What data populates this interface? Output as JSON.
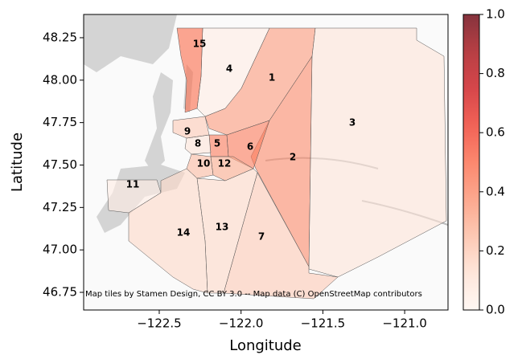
{
  "chart_data": {
    "type": "choropleth",
    "xlabel": "Longitude",
    "ylabel": "Latitude",
    "xlim": [
      -122.962,
      -120.735
    ],
    "ylim": [
      46.646,
      48.387
    ],
    "xticks": [
      {
        "value": -122.5,
        "label": "−122.5"
      },
      {
        "value": -122.0,
        "label": "−122.0"
      },
      {
        "value": -121.5,
        "label": "−121.5"
      },
      {
        "value": -121.0,
        "label": "−121.0"
      }
    ],
    "yticks": [
      46.75,
      {
        "value": 47.0,
        "label": "47.00"
      },
      47.25,
      {
        "value": 47.5,
        "label": "47.50"
      },
      47.75,
      {
        "value": 48.0,
        "label": "48.00"
      },
      48.25
    ],
    "colormap": "Reds",
    "clim": [
      0,
      1
    ],
    "cticks": [
      {
        "value": 0,
        "label": "0.0"
      },
      {
        "value": 0.2,
        "label": "0.2"
      },
      {
        "value": 0.4,
        "label": "0.4"
      },
      {
        "value": 0.6,
        "label": "0.6"
      },
      {
        "value": 0.8,
        "label": "0.8"
      },
      {
        "value": 1,
        "label": "1.0"
      }
    ],
    "regions": [
      {
        "label": "1",
        "value": 0.35
      },
      {
        "label": "2",
        "value": 0.4
      },
      {
        "label": "3",
        "value": 0.1
      },
      {
        "label": "4",
        "value": 0.05
      },
      {
        "label": "5",
        "value": 0.45
      },
      {
        "label": "6",
        "value": 0.45
      },
      {
        "label": "7",
        "value": 0.2
      },
      {
        "label": "8",
        "value": 0.1
      },
      {
        "label": "9",
        "value": 0.2
      },
      {
        "label": "10",
        "value": 0.25
      },
      {
        "label": "11",
        "value": 0.3
      },
      {
        "label": "12",
        "value": 0.05
      },
      {
        "label": "13",
        "value": 0.15
      },
      {
        "label": "14",
        "value": 0.15
      },
      {
        "label": "15",
        "value": 0.5
      }
    ],
    "attribution": "Map tiles by Stamen Design, CC BY 3.0 -- Map data (C) OpenStreetMap contributors"
  }
}
